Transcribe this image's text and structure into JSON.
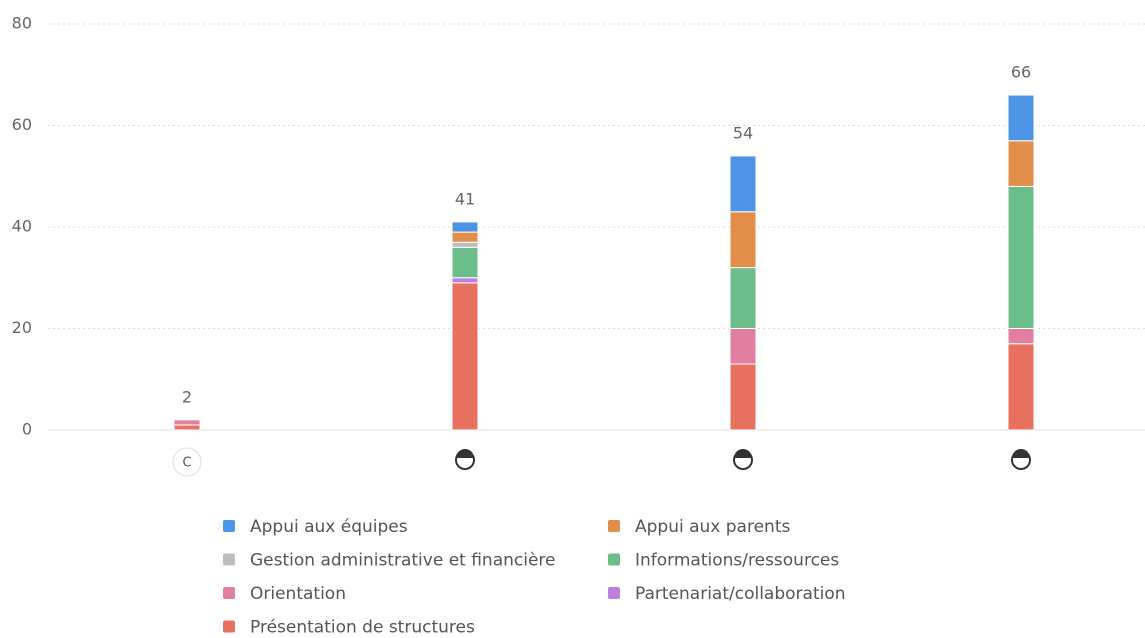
{
  "chart_data": {
    "type": "stacked_bar",
    "categories": [
      "C",
      null,
      null,
      null
    ],
    "series": [
      {
        "name": "Appui aux équipes",
        "color": "#4e94e6",
        "values": [
          0,
          2,
          11,
          9
        ]
      },
      {
        "name": "Appui aux parents",
        "color": "#e08e4a",
        "values": [
          0,
          2,
          11,
          9
        ]
      },
      {
        "name": "Gestion administrative et financière",
        "color": "#bdbdbd",
        "values": [
          0,
          1,
          0,
          0
        ]
      },
      {
        "name": "Informations/ressources",
        "color": "#6bbd8a",
        "values": [
          0,
          6,
          12,
          28
        ]
      },
      {
        "name": "Orientation",
        "color": "#e07fa0",
        "values": [
          1,
          0,
          7,
          3
        ]
      },
      {
        "name": "Partenariat/collaboration",
        "color": "#c07fdc",
        "values": [
          0,
          1,
          0,
          0
        ]
      },
      {
        "name": "Présentation de structures",
        "color": "#e8705f",
        "values": [
          1,
          29,
          13,
          17
        ]
      }
    ],
    "total_labels": [
      2,
      41,
      54,
      66
    ],
    "ylim": [
      0,
      80
    ],
    "yticks": [
      0,
      20,
      40,
      60,
      80
    ],
    "grid": true
  }
}
